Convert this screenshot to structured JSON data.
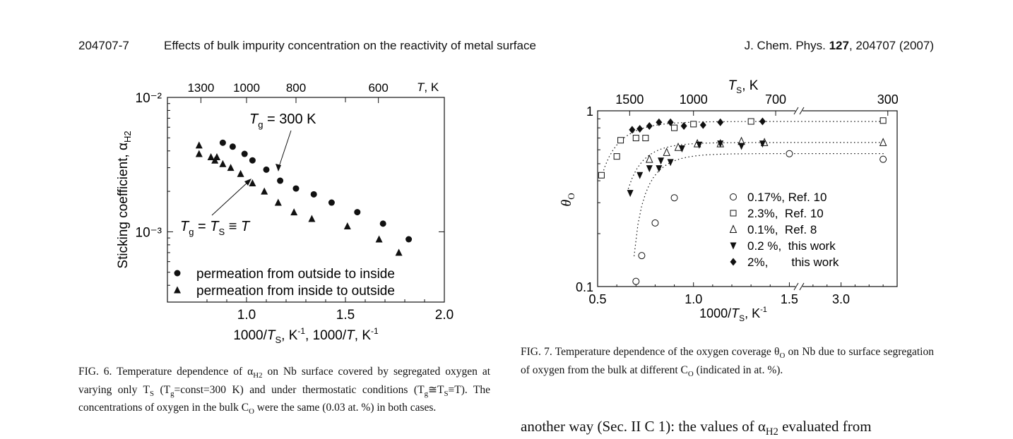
{
  "header": {
    "page_id": "204707-7",
    "title": "Effects of bulk impurity concentration on the reactivity of metal surface",
    "journal": "J. Chem. Phys. ",
    "volume": "127",
    "rest": ", 204707 (2007)"
  },
  "fig6": {
    "caption": {
      "p1": "FIG. 6. Temperature dependence of α",
      "p1sub": "H2",
      "p2": " on Nb surface covered by segregated oxygen at varying only T",
      "p2sub": "S",
      "p3": " (T",
      "p3sub": "g",
      "p4": "=const=300 K) and under thermostatic conditions (T",
      "p4sub": "g",
      "p5": "≅T",
      "p5sub": "S",
      "p6": "≡T). The concentrations of oxygen in the bulk C",
      "p6sub": "O",
      "p7": " were the same (0.03 at. %) in both cases."
    }
  },
  "fig7": {
    "caption": {
      "p1": "FIG. 7. Temperature dependence of the oxygen coverage θ",
      "p1sub": "O",
      "p2": " on Nb due to surface segregation of oxygen from the bulk at different C",
      "p2sub": "O",
      "p3": " (indicated in at. %)."
    }
  },
  "body_text": {
    "p1": "another way (Sec. II C 1): the values of α",
    "p1sub": "H2",
    "p2": " evaluated from"
  },
  "chart_data": [
    {
      "type": "scatter",
      "id": "fig6",
      "xlabel": "1000/T_S, K⁻¹,   1000/T, K⁻¹",
      "ylabel": "Sticking coefficient, α_H2",
      "top_axis_label": "T, K",
      "xlim": [
        0.6,
        2.0
      ],
      "ylim": [
        0.0003,
        0.01
      ],
      "yscale": "log",
      "x_ticks": [
        "1.0",
        "1.5",
        "2.0"
      ],
      "y_ticks": [
        "10⁻²",
        "10⁻³"
      ],
      "top_ticks": [
        "1300",
        "1000",
        "800",
        "600"
      ],
      "annotations": [
        "T_g = 300 K",
        "T_g = T_S ≡ T"
      ],
      "legend": [
        "permeation from outside to inside",
        "permeation from inside to outside"
      ],
      "legend_position": "bottom-left",
      "series": [
        {
          "name": "permeation from outside to inside",
          "marker": "circle",
          "x": [
            0.88,
            0.93,
            0.99,
            1.03,
            1.1,
            1.17,
            1.25,
            1.34,
            1.43,
            1.56,
            1.69,
            1.82
          ],
          "y": [
            0.0046,
            0.0043,
            0.0038,
            0.0034,
            0.0029,
            0.0024,
            0.0021,
            0.0019,
            0.00165,
            0.0014,
            0.00115,
            0.00088
          ]
        },
        {
          "name": "permeation from inside to outside",
          "marker": "triangle",
          "x": [
            0.76,
            0.76,
            0.82,
            0.84,
            0.85,
            0.88,
            0.92,
            0.97,
            1.03,
            1.09,
            1.16,
            1.24,
            1.33,
            1.51,
            1.67,
            1.77
          ],
          "y": [
            0.0044,
            0.0038,
            0.0036,
            0.0034,
            0.0036,
            0.0032,
            0.003,
            0.0027,
            0.0023,
            0.002,
            0.00165,
            0.0014,
            0.00125,
            0.0011,
            0.00088,
            0.0007
          ]
        }
      ]
    },
    {
      "type": "scatter",
      "id": "fig7",
      "xlabel": "1000/T_S, K⁻¹",
      "ylabel": "θ_O",
      "top_axis_label": "T_S, K",
      "xlim": [
        0.5,
        3.4
      ],
      "axis_break": [
        1.55,
        2.7
      ],
      "ylim": [
        0.1,
        1
      ],
      "yscale": "log",
      "x_ticks": [
        "0.5",
        "1.0",
        "1.5",
        "3.0"
      ],
      "y_ticks": [
        "1",
        "0.1"
      ],
      "top_ticks": [
        "1500",
        "1000",
        "700",
        "300"
      ],
      "legend_position": "bottom-right",
      "series": [
        {
          "name": "0.17%, Ref. 10",
          "marker": "open-circle",
          "x": [
            0.7,
            0.73,
            0.8,
            0.9,
            1.5,
            3.3
          ],
          "y": [
            0.107,
            0.15,
            0.23,
            0.32,
            0.57,
            0.53
          ]
        },
        {
          "name": "2.3%,  Ref. 10",
          "marker": "open-square",
          "x": [
            0.52,
            0.6,
            0.62,
            0.7,
            0.75,
            0.9,
            1.0,
            1.3,
            3.3
          ],
          "y": [
            0.43,
            0.55,
            0.68,
            0.7,
            0.7,
            0.8,
            0.84,
            0.87,
            0.88
          ]
        },
        {
          "name": "0.1%,  Ref. 8",
          "marker": "open-triangle",
          "x": [
            0.77,
            0.86,
            0.92,
            1.02,
            1.14,
            1.25,
            1.37,
            3.3
          ],
          "y": [
            0.53,
            0.58,
            0.62,
            0.65,
            0.65,
            0.67,
            0.66,
            0.66
          ]
        },
        {
          "name": "0.2 %,  this work",
          "marker": "filled-down-triangle",
          "x": [
            0.67,
            0.72,
            0.77,
            0.82,
            0.83,
            0.88,
            0.94,
            1.03,
            1.14,
            1.25,
            1.36
          ],
          "y": [
            0.34,
            0.43,
            0.47,
            0.47,
            0.52,
            0.51,
            0.61,
            0.64,
            0.65,
            0.63,
            0.65
          ]
        },
        {
          "name": "2%,       this work",
          "marker": "filled-diamond",
          "x": [
            0.68,
            0.72,
            0.77,
            0.82,
            0.88,
            0.95,
            1.05,
            1.14,
            1.36
          ],
          "y": [
            0.78,
            0.79,
            0.82,
            0.86,
            0.86,
            0.82,
            0.83,
            0.86,
            0.87
          ]
        }
      ]
    }
  ]
}
